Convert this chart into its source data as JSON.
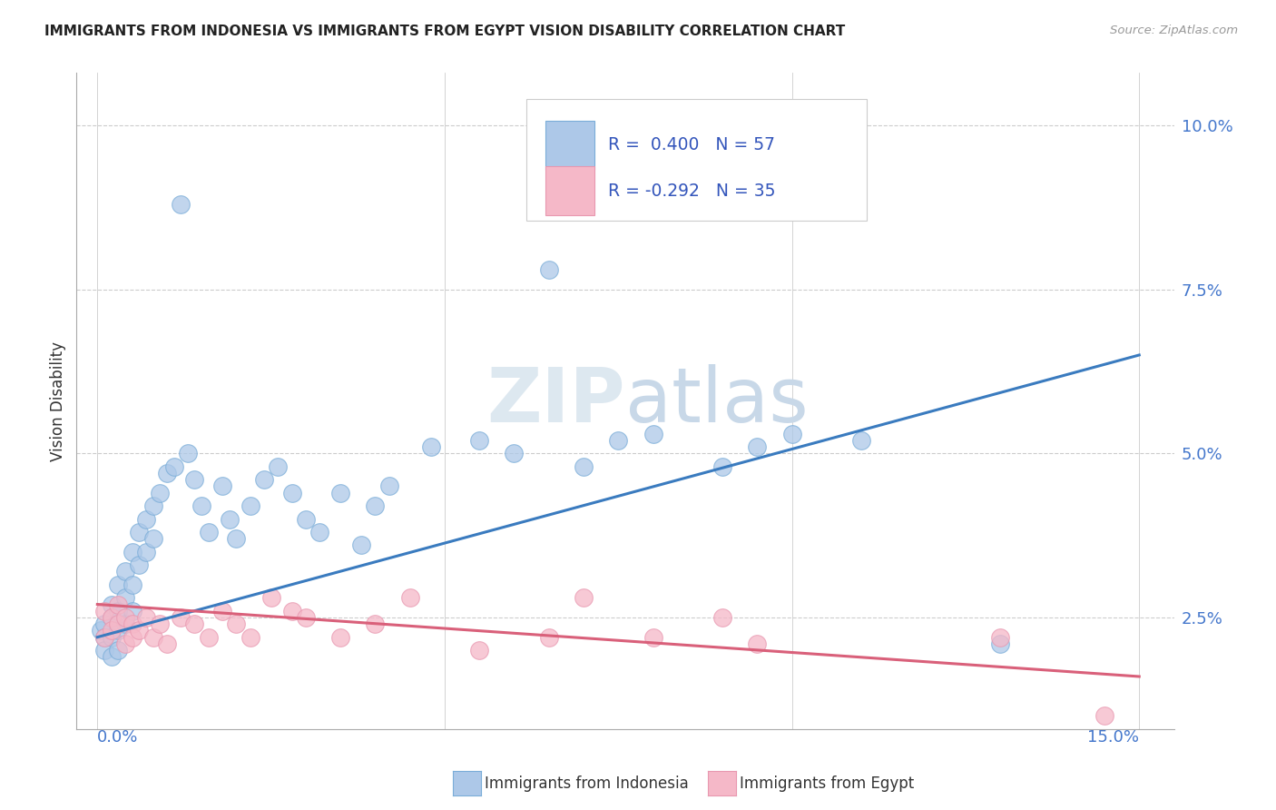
{
  "title": "IMMIGRANTS FROM INDONESIA VS IMMIGRANTS FROM EGYPT VISION DISABILITY CORRELATION CHART",
  "source": "Source: ZipAtlas.com",
  "ylabel": "Vision Disability",
  "ytick_vals": [
    0.025,
    0.05,
    0.075,
    0.1
  ],
  "ytick_labels": [
    "2.5%",
    "5.0%",
    "7.5%",
    "10.0%"
  ],
  "xlim": [
    0.0,
    0.15
  ],
  "ylim": [
    0.008,
    0.108
  ],
  "legend1_R": "0.400",
  "legend1_N": "57",
  "legend2_R": "-0.292",
  "legend2_N": "35",
  "color_indonesia": "#adc8e8",
  "color_egypt": "#f5b8c8",
  "line_indonesia": "#3a7bbf",
  "line_egypt": "#d9607a",
  "watermark": "ZIPatlas",
  "indo_line_start_y": 0.022,
  "indo_line_end_y": 0.065,
  "egypt_line_start_y": 0.027,
  "egypt_line_end_y": 0.016,
  "indonesia_x": [
    0.0005,
    0.001,
    0.001,
    0.001,
    0.002,
    0.002,
    0.002,
    0.002,
    0.003,
    0.003,
    0.003,
    0.003,
    0.004,
    0.004,
    0.004,
    0.005,
    0.005,
    0.005,
    0.006,
    0.006,
    0.007,
    0.007,
    0.008,
    0.008,
    0.009,
    0.01,
    0.011,
    0.012,
    0.013,
    0.014,
    0.015,
    0.016,
    0.018,
    0.019,
    0.02,
    0.022,
    0.024,
    0.026,
    0.028,
    0.03,
    0.032,
    0.035,
    0.038,
    0.04,
    0.042,
    0.048,
    0.055,
    0.06,
    0.065,
    0.07,
    0.075,
    0.08,
    0.09,
    0.095,
    0.1,
    0.11,
    0.13
  ],
  "indonesia_y": [
    0.023,
    0.024,
    0.022,
    0.02,
    0.027,
    0.025,
    0.022,
    0.019,
    0.03,
    0.026,
    0.023,
    0.02,
    0.032,
    0.028,
    0.024,
    0.035,
    0.03,
    0.026,
    0.038,
    0.033,
    0.04,
    0.035,
    0.042,
    0.037,
    0.044,
    0.047,
    0.048,
    0.088,
    0.05,
    0.046,
    0.042,
    0.038,
    0.045,
    0.04,
    0.037,
    0.042,
    0.046,
    0.048,
    0.044,
    0.04,
    0.038,
    0.044,
    0.036,
    0.042,
    0.045,
    0.051,
    0.052,
    0.05,
    0.078,
    0.048,
    0.052,
    0.053,
    0.048,
    0.051,
    0.053,
    0.052,
    0.021
  ],
  "egypt_x": [
    0.001,
    0.001,
    0.002,
    0.002,
    0.003,
    0.003,
    0.004,
    0.004,
    0.005,
    0.005,
    0.006,
    0.007,
    0.008,
    0.009,
    0.01,
    0.012,
    0.014,
    0.016,
    0.018,
    0.02,
    0.022,
    0.025,
    0.028,
    0.03,
    0.035,
    0.04,
    0.045,
    0.055,
    0.065,
    0.07,
    0.08,
    0.09,
    0.095,
    0.13,
    0.145
  ],
  "egypt_y": [
    0.026,
    0.022,
    0.025,
    0.023,
    0.027,
    0.024,
    0.025,
    0.021,
    0.024,
    0.022,
    0.023,
    0.025,
    0.022,
    0.024,
    0.021,
    0.025,
    0.024,
    0.022,
    0.026,
    0.024,
    0.022,
    0.028,
    0.026,
    0.025,
    0.022,
    0.024,
    0.028,
    0.02,
    0.022,
    0.028,
    0.022,
    0.025,
    0.021,
    0.022,
    0.01
  ]
}
